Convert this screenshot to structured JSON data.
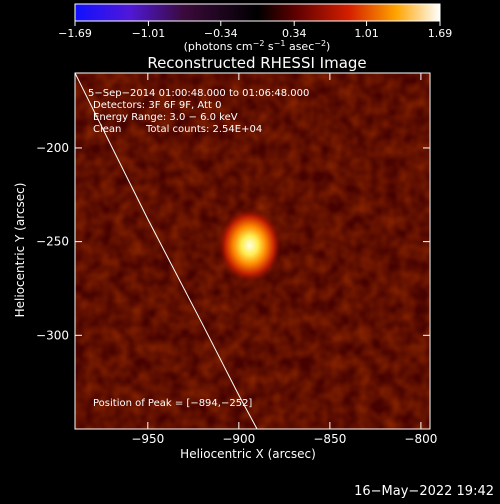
{
  "chart_data": {
    "type": "heatmap",
    "title": "Reconstructed RHESSI Image",
    "xlabel": "Heliocentric X (arcsec)",
    "ylabel": "Heliocentric Y (arcsec)",
    "xlim": [
      -990,
      -795
    ],
    "ylim": [
      -350,
      -160
    ],
    "x_ticks": [
      -950,
      -900,
      -850,
      -800
    ],
    "x_tick_labels": [
      "−950",
      "−900",
      "−850",
      "−800"
    ],
    "y_ticks": [
      -200,
      -250,
      -300
    ],
    "y_tick_labels": [
      "−200",
      "−250",
      "−300"
    ],
    "colorbar": {
      "range": [
        -1.69,
        1.69
      ],
      "ticks": [
        -1.69,
        -1.01,
        -0.34,
        0.34,
        1.01,
        1.69
      ],
      "tick_labels": [
        "−1.69",
        "−1.01",
        "−0.34",
        "0.34",
        "1.01",
        "1.69"
      ],
      "unit_main": "(photons cm",
      "unit_exp1": "−2",
      "unit_mid": " s",
      "unit_exp2": "−1",
      "unit_end": " asec",
      "unit_exp3": "−2",
      "unit_close": ")"
    },
    "peak": {
      "x": -894,
      "y": -252,
      "sigma_arcsec": 6
    },
    "limb": [
      [
        -990,
        -160
      ],
      [
        -950,
        -238
      ],
      [
        -920,
        -294
      ],
      [
        -900,
        -332
      ],
      [
        -890,
        -350
      ]
    ],
    "annotations": {
      "time_range": "5−Sep−2014 01:00:48.000 to 01:06:48.000",
      "detectors": "Detectors: 3F 6F 9F, Att 0",
      "energy": "Energy Range: 3.0 − 6.0 keV",
      "algo": "Clean",
      "counts": "Total counts: 2.54E+04",
      "peak_label": "Position of Peak = [−894,−252]"
    }
  },
  "footer": {
    "date": "16−May−2022 19:42"
  },
  "colors": {
    "low": "#0000ff",
    "mid": "#000000",
    "high": "#ffffff",
    "limb": "#ffffff"
  }
}
